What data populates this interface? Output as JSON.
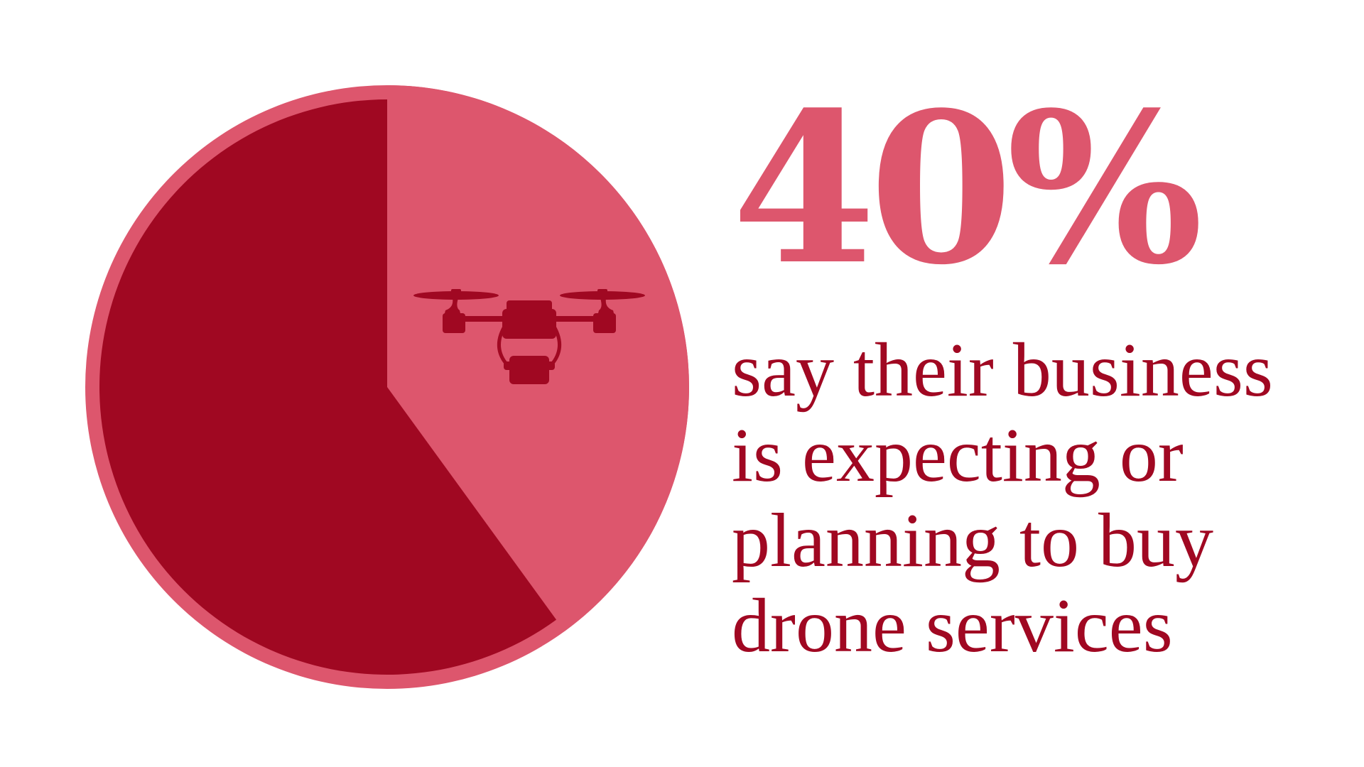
{
  "colors": {
    "highlight": "#dd566d",
    "base": "#a00822",
    "background": "#ffffff"
  },
  "icon": "drone-icon",
  "chart_data": {
    "type": "pie",
    "title": "",
    "slices": [
      {
        "label": "",
        "value": 40,
        "color": "#dd566d"
      },
      {
        "label": "",
        "value": 60,
        "color": "#a00822"
      }
    ],
    "start_angle_deg": 0,
    "direction": "clockwise",
    "legend": "none"
  },
  "stat": {
    "value": "40%",
    "caption_lines": [
      "say their business",
      "is expecting or",
      "planning to buy",
      "drone services"
    ]
  }
}
